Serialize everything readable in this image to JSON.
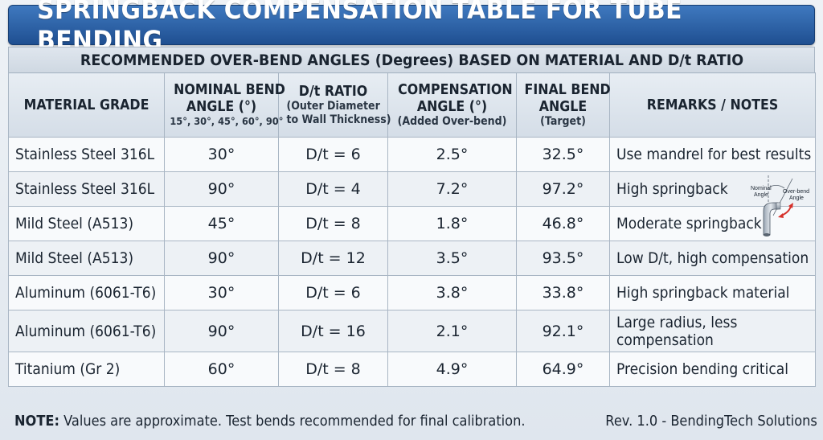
{
  "title": "SPRINGBACK COMPENSATION TABLE FOR TUBE BENDING",
  "subtitle": "RECOMMENDED OVER-BEND ANGLES (Degrees) BASED ON MATERIAL AND D/t RATIO",
  "headers": {
    "material": {
      "main": "MATERIAL GRADE"
    },
    "nominal": {
      "main1": "NOMINAL BEND",
      "main2": "ANGLE (°)",
      "sub": "15°, 30°, 45°, 60°, 90°"
    },
    "dt": {
      "main": "D/t RATIO",
      "sub1": "(Outer Diameter",
      "sub2": "to Wall Thickness)"
    },
    "compensation": {
      "main1": "COMPENSATION",
      "main2": "ANGLE (°)",
      "sub": "(Added Over-bend)"
    },
    "final": {
      "main1": "FINAL BEND",
      "main2": "ANGLE",
      "sub": "(Target)"
    },
    "remarks": {
      "main": "REMARKS / NOTES"
    }
  },
  "rows": [
    {
      "material": "Stainless Steel 316L",
      "nominal": "30°",
      "dt": "D/t = 6",
      "compensation": "2.5°",
      "final": "32.5°",
      "remarks": "Use mandrel for best results"
    },
    {
      "material": "Stainless Steel 316L",
      "nominal": "90°",
      "dt": "D/t = 4",
      "compensation": "7.2°",
      "final": "97.2°",
      "remarks": "High springback"
    },
    {
      "material": "Mild Steel (A513)",
      "nominal": "45°",
      "dt": "D/t = 8",
      "compensation": "1.8°",
      "final": "46.8°",
      "remarks": "Moderate springback"
    },
    {
      "material": "Mild Steel (A513)",
      "nominal": "90°",
      "dt": "D/t = 12",
      "compensation": "3.5°",
      "final": "93.5°",
      "remarks": "Low D/t, high compensation"
    },
    {
      "material": "Aluminum (6061-T6)",
      "nominal": "30°",
      "dt": "D/t = 6",
      "compensation": "3.8°",
      "final": "33.8°",
      "remarks": "High springback material"
    },
    {
      "material": "Aluminum (6061-T6)",
      "nominal": "90°",
      "dt": "D/t = 16",
      "compensation": "2.1°",
      "final": "92.1°",
      "remarks": "Large radius, less compensation"
    },
    {
      "material": "Titanium (Gr 2)",
      "nominal": "60°",
      "dt": "D/t = 8",
      "compensation": "4.9°",
      "final": "64.9°",
      "remarks": "Precision bending critical"
    }
  ],
  "diagram": {
    "nominal_label_1": "Nominal",
    "nominal_label_2": "Angle",
    "overbend_label_1": "Over-bend",
    "overbend_label_2": "Angle"
  },
  "footer": {
    "note_label": "NOTE:",
    "note_text": " Values are approximate. Test bends recommended for final calibration.",
    "revision": "Rev. 1.0 - BendingTech Solutions"
  },
  "colors": {
    "title_bar": "#2a5fa4",
    "header_bg": "#dfe6ee",
    "accent_arrow": "#d6312b"
  }
}
